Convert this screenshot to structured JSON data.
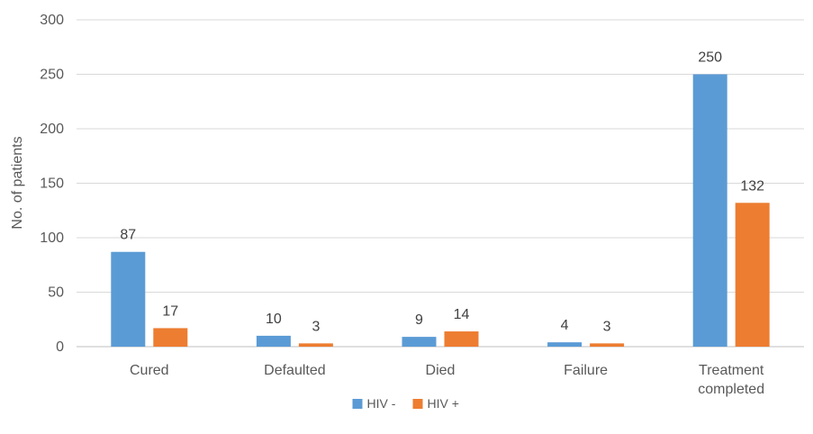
{
  "chart_data": {
    "type": "bar",
    "categories": [
      "Cured",
      "Defaulted",
      "Died",
      "Failure",
      "Treatment completed"
    ],
    "category_lines": [
      [
        "Cured"
      ],
      [
        "Defaulted"
      ],
      [
        "Died"
      ],
      [
        "Failure"
      ],
      [
        "Treatment",
        "completed"
      ]
    ],
    "series": [
      {
        "name": "HIV -",
        "color": "#5b9bd5",
        "values": [
          87,
          10,
          9,
          4,
          250
        ]
      },
      {
        "name": "HIV +",
        "color": "#ed7d31",
        "values": [
          17,
          3,
          14,
          3,
          132
        ]
      }
    ],
    "ylabel": "No. of patients",
    "xlabel": "",
    "ylim": [
      0,
      300
    ],
    "yticks": [
      0,
      50,
      100,
      150,
      200,
      250,
      300
    ],
    "grid": true,
    "legend_position": "bottom-center",
    "data_labels": true
  }
}
